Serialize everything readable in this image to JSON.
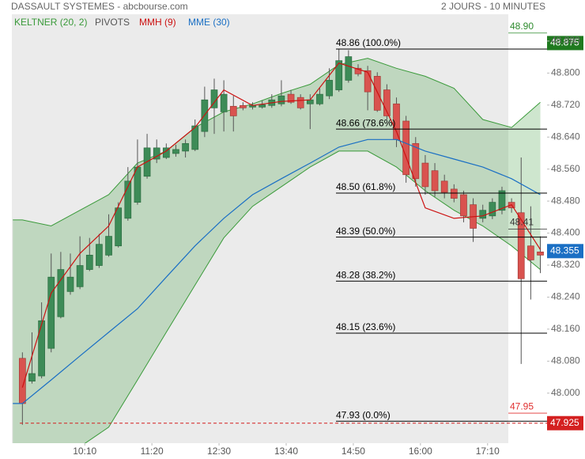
{
  "chart_data": {
    "type": "candlestick",
    "title": "DASSAULT SYSTEMES - abcbourse.com",
    "subtitle": "2 JOURS - 10 MINUTES",
    "x": [
      545,
      555,
      565,
      575,
      585,
      595,
      605,
      615,
      625,
      635,
      645,
      655,
      665,
      675,
      685,
      695,
      705,
      715,
      725,
      735,
      745,
      755,
      765,
      775,
      785,
      795,
      805,
      815,
      825,
      835,
      845,
      855,
      865,
      875,
      885,
      895,
      905,
      915,
      925,
      935,
      945,
      955,
      965,
      975,
      985,
      995,
      1005,
      1015,
      1025,
      1035,
      1045,
      1055,
      1065,
      1075,
      1085
    ],
    "open": [
      48.087,
      48.03,
      48.043,
      48.112,
      48.191,
      48.254,
      48.266,
      48.309,
      48.319,
      48.345,
      48.368,
      48.437,
      48.477,
      48.542,
      48.585,
      48.589,
      48.599,
      48.605,
      48.609,
      48.654,
      48.713,
      48.703,
      48.717,
      48.719,
      48.715,
      48.715,
      48.719,
      48.723,
      48.747,
      48.739,
      48.723,
      48.723,
      48.743,
      48.758,
      48.782,
      48.812,
      48.806,
      48.792,
      48.758,
      48.723,
      48.68,
      48.624,
      48.575,
      48.556,
      48.53,
      48.51,
      48.496,
      48.471,
      48.437,
      48.443,
      48.457,
      48.477,
      48.451,
      48.368,
      48.353
    ],
    "high": [
      48.102,
      48.152,
      48.227,
      48.349,
      48.353,
      48.349,
      48.392,
      48.388,
      48.398,
      48.447,
      48.477,
      48.565,
      48.634,
      48.648,
      48.634,
      48.624,
      48.621,
      48.634,
      48.684,
      48.766,
      48.786,
      48.782,
      48.743,
      48.727,
      48.727,
      48.731,
      48.747,
      48.782,
      48.758,
      48.747,
      48.747,
      48.762,
      48.812,
      48.861,
      48.857,
      48.822,
      48.818,
      48.802,
      48.772,
      48.739,
      48.693,
      48.64,
      48.595,
      48.575,
      48.546,
      48.522,
      48.506,
      48.487,
      48.471,
      48.487,
      48.516,
      48.487,
      48.589,
      48.467,
      48.392
    ],
    "low": [
      47.921,
      48.024,
      48.037,
      48.102,
      48.187,
      48.246,
      48.26,
      48.305,
      48.313,
      48.341,
      48.364,
      48.431,
      48.471,
      48.536,
      48.575,
      48.585,
      48.591,
      48.589,
      48.605,
      48.64,
      48.648,
      48.654,
      48.654,
      48.707,
      48.709,
      48.711,
      48.713,
      48.717,
      48.723,
      48.709,
      48.66,
      48.719,
      48.735,
      48.753,
      48.776,
      48.792,
      48.707,
      48.703,
      48.684,
      48.615,
      48.526,
      48.516,
      48.496,
      48.491,
      48.487,
      48.477,
      48.427,
      48.378,
      48.427,
      48.435,
      48.447,
      48.451,
      48.073,
      48.234,
      48.3
    ],
    "close": [
      47.974,
      48.049,
      48.181,
      48.29,
      48.309,
      48.29,
      48.319,
      48.345,
      48.372,
      48.392,
      48.463,
      48.53,
      48.565,
      48.613,
      48.613,
      48.613,
      48.609,
      48.624,
      48.668,
      48.733,
      48.758,
      48.747,
      48.693,
      48.713,
      48.719,
      48.721,
      48.733,
      48.743,
      48.727,
      48.713,
      48.733,
      48.747,
      48.782,
      48.831,
      48.841,
      48.798,
      48.753,
      48.707,
      48.693,
      48.634,
      48.546,
      48.536,
      48.516,
      48.506,
      48.502,
      48.487,
      48.443,
      48.412,
      48.457,
      48.477,
      48.506,
      48.463,
      48.286,
      48.333,
      48.345
    ],
    "up_color": "#3d8b57",
    "down_color": "#d9534f",
    "xlim": [
      534,
      1092
    ],
    "xticks": [
      {
        "value": 610,
        "label": "10:10"
      },
      {
        "value": 680,
        "label": "11:20"
      },
      {
        "value": 750,
        "label": "12:30"
      },
      {
        "value": 820,
        "label": "13:40"
      },
      {
        "value": 890,
        "label": "14:50"
      },
      {
        "value": 960,
        "label": "16:00"
      },
      {
        "value": 1030,
        "label": "17:10"
      }
    ],
    "ylim": [
      47.875,
      48.947
    ],
    "yticks": [
      {
        "value": 48.0,
        "label": "48.000"
      },
      {
        "value": 48.08,
        "label": "48.080"
      },
      {
        "value": 48.16,
        "label": "48.160"
      },
      {
        "value": 48.24,
        "label": "48.240"
      },
      {
        "value": 48.32,
        "label": "48.320"
      },
      {
        "value": 48.4,
        "label": "48.400"
      },
      {
        "value": 48.48,
        "label": "48.480"
      },
      {
        "value": 48.56,
        "label": "48.560"
      },
      {
        "value": 48.64,
        "label": "48.640"
      },
      {
        "value": 48.72,
        "label": "48.720"
      },
      {
        "value": 48.8,
        "label": "48.800"
      },
      {
        "value": 48.88,
        "label": "48.880"
      }
    ],
    "overlay_x": [
      535,
      545,
      575,
      605,
      635,
      665,
      695,
      725,
      755,
      785,
      815,
      845,
      875,
      905,
      935,
      965,
      995,
      1025,
      1055,
      1085
    ],
    "keltner": {
      "name": "KELTNER (20, 2)",
      "color": "#3a9a3a",
      "upper": [
        48.433,
        48.433,
        48.418,
        48.457,
        48.496,
        48.575,
        48.605,
        48.664,
        48.703,
        48.723,
        48.749,
        48.772,
        48.821,
        48.837,
        48.812,
        48.792,
        48.762,
        48.684,
        48.664,
        48.727
      ],
      "lower": [
        47.856,
        47.856,
        47.856,
        47.866,
        47.915,
        48.033,
        48.152,
        48.27,
        48.388,
        48.467,
        48.516,
        48.565,
        48.605,
        48.605,
        48.565,
        48.506,
        48.457,
        48.418,
        48.368,
        48.309
      ]
    },
    "overlays": [
      {
        "name": "MMH (9)",
        "color": "#cc1111",
        "values": [
          null,
          48.014,
          48.25,
          48.349,
          48.418,
          48.565,
          48.605,
          48.664,
          48.758,
          48.719,
          48.729,
          48.733,
          48.825,
          48.802,
          48.654,
          48.463,
          48.437,
          48.443,
          48.471,
          48.359
        ]
      },
      {
        "name": "MME (30)",
        "color": "#1a6fc4",
        "values": [
          47.974,
          47.974,
          48.033,
          48.093,
          48.152,
          48.211,
          48.29,
          48.368,
          48.437,
          48.496,
          48.536,
          48.575,
          48.615,
          48.634,
          48.634,
          48.605,
          48.585,
          48.565,
          48.536,
          48.496
        ]
      }
    ],
    "pivots": {
      "name": "PIVOTS",
      "color": "#000000",
      "levels": [
        {
          "value": 48.86,
          "label": "48.86 (100.0%)"
        },
        {
          "value": 48.66,
          "label": "48.66 (78.6%)"
        },
        {
          "value": 48.5,
          "label": "48.50 (61.8%)"
        },
        {
          "value": 48.39,
          "label": "48.39 (50.0%)"
        },
        {
          "value": 48.28,
          "label": "48.28 (38.2%)"
        },
        {
          "value": 48.15,
          "label": "48.15 (23.6%)"
        },
        {
          "value": 47.93,
          "label": "47.93 (0.0%)"
        }
      ]
    },
    "price_markers": [
      {
        "value": 48.9,
        "label": "48.90",
        "color": "#2e8b2e",
        "style": "text"
      },
      {
        "value": 48.875,
        "color": "#1f7a1f",
        "style": "badge"
      },
      {
        "value": 48.41,
        "color": "#333333",
        "style": "text"
      },
      {
        "value": 48.355,
        "color": "#1a6fc4",
        "style": "badge"
      },
      {
        "value": 47.95,
        "color": "#e03030",
        "style": "text"
      },
      {
        "value": 47.925,
        "color": "#d42020",
        "style": "badge",
        "dashed": true
      }
    ]
  }
}
